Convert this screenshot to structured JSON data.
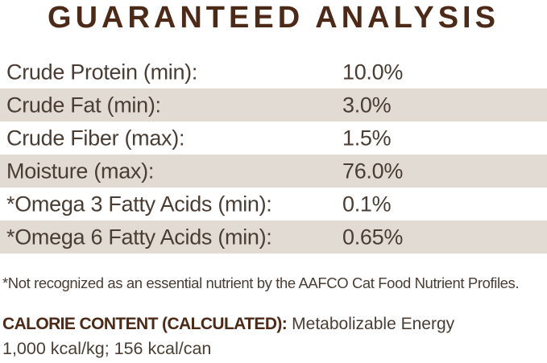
{
  "title": "GUARANTEED ANALYSIS",
  "table": {
    "rows": [
      {
        "label": "Crude Protein (min):",
        "value": "10.0%"
      },
      {
        "label": "Crude Fat (min):",
        "value": "3.0%"
      },
      {
        "label": "Crude Fiber (max):",
        "value": "1.5%"
      },
      {
        "label": "Moisture (max):",
        "value": "76.0%"
      },
      {
        "label": "*Omega 3 Fatty Acids (min):",
        "value": "0.1%"
      },
      {
        "label": "*Omega 6 Fatty Acids (min):",
        "value": "0.65%"
      }
    ]
  },
  "footnote": "*Not recognized as an essential nutrient by the AAFCO Cat Food Nutrient Profiles.",
  "calorie": {
    "heading": "CALORIE CONTENT (CALCULATED):",
    "subheading": "Metabolizable Energy",
    "values": "1,000 kcal/kg; 156 kcal/can"
  },
  "colors": {
    "heading_brown": "#4d2a18",
    "body_text": "#493d34",
    "row_alt_bg": "#e2dbd3"
  }
}
